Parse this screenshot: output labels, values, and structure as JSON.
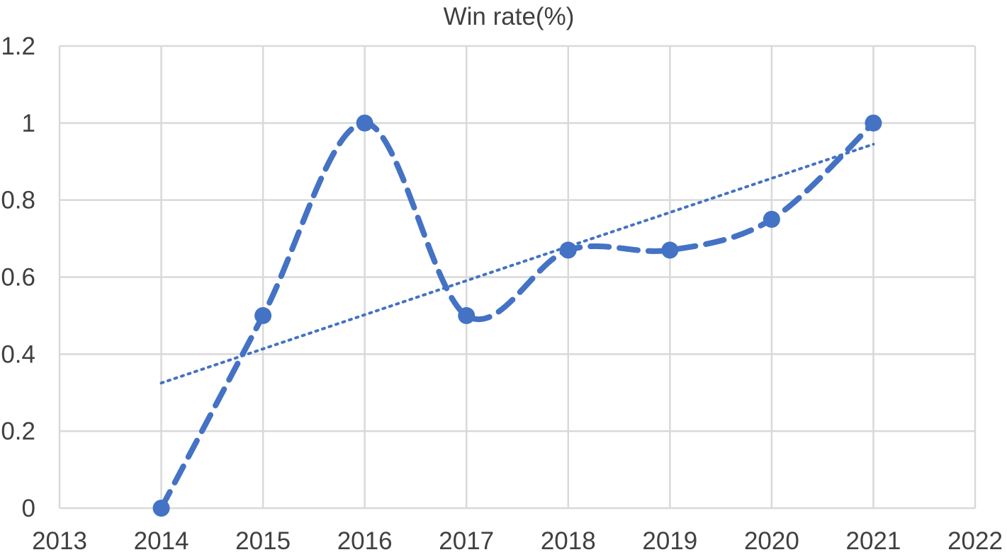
{
  "chart_data": {
    "type": "scatter",
    "title": "Win rate(%)",
    "xlabel": "",
    "ylabel": "",
    "xlim": [
      2013,
      2022
    ],
    "ylim": [
      0,
      1.2
    ],
    "x_ticks": [
      2013,
      2014,
      2015,
      2016,
      2017,
      2018,
      2019,
      2020,
      2021,
      2022
    ],
    "y_ticks": [
      0,
      0.2,
      0.4,
      0.6,
      0.8,
      1,
      1.2
    ],
    "grid": true,
    "legend": "none",
    "series": [
      {
        "style": "smoothed dashed line with markers",
        "color": "#4472C4",
        "x": [
          2014,
          2015,
          2016,
          2017,
          2018,
          2019,
          2020,
          2021
        ],
        "y": [
          0,
          0.5,
          1,
          0.5,
          0.67,
          0.67,
          0.75,
          1
        ]
      }
    ],
    "trendline": {
      "type": "linear",
      "style": "dotted",
      "color": "#4472C4",
      "x": [
        2014,
        2021
      ],
      "y": [
        0.325,
        0.945
      ]
    }
  }
}
